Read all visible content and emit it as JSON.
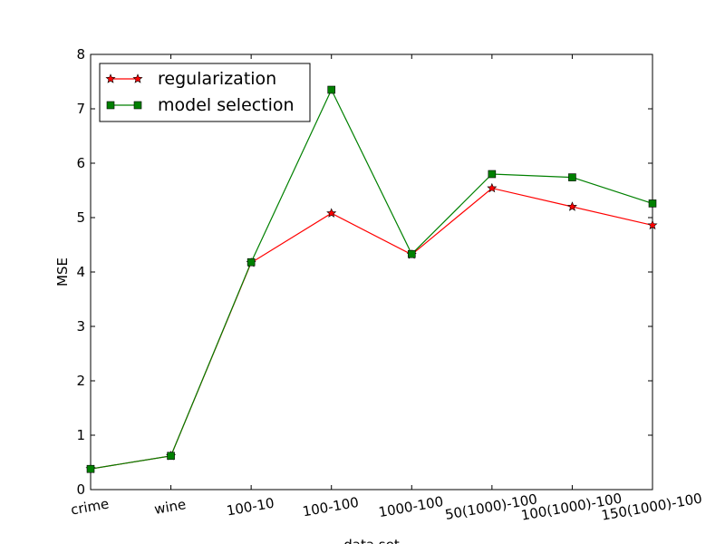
{
  "chart_data": {
    "type": "line",
    "categories": [
      "crime",
      "wine",
      "100-10",
      "100-100",
      "1000-100",
      "50(1000)-100",
      "100(1000)-100",
      "150(1000)-100"
    ],
    "series": [
      {
        "name": "regularization",
        "values": [
          0.38,
          0.62,
          4.17,
          5.08,
          4.32,
          5.54,
          5.2,
          4.86
        ],
        "color": "#ff0000",
        "marker": "star"
      },
      {
        "name": "model selection",
        "values": [
          0.38,
          0.62,
          4.18,
          7.35,
          4.33,
          5.8,
          5.74,
          5.26
        ],
        "color": "#008000",
        "marker": "square"
      }
    ],
    "xlabel": "data set",
    "ylabel": "MSE",
    "ylim": [
      0,
      8
    ],
    "yticks": [
      "0",
      "1",
      "2",
      "3",
      "4",
      "5",
      "6",
      "7",
      "8"
    ],
    "grid": false,
    "legend": "top-left"
  }
}
